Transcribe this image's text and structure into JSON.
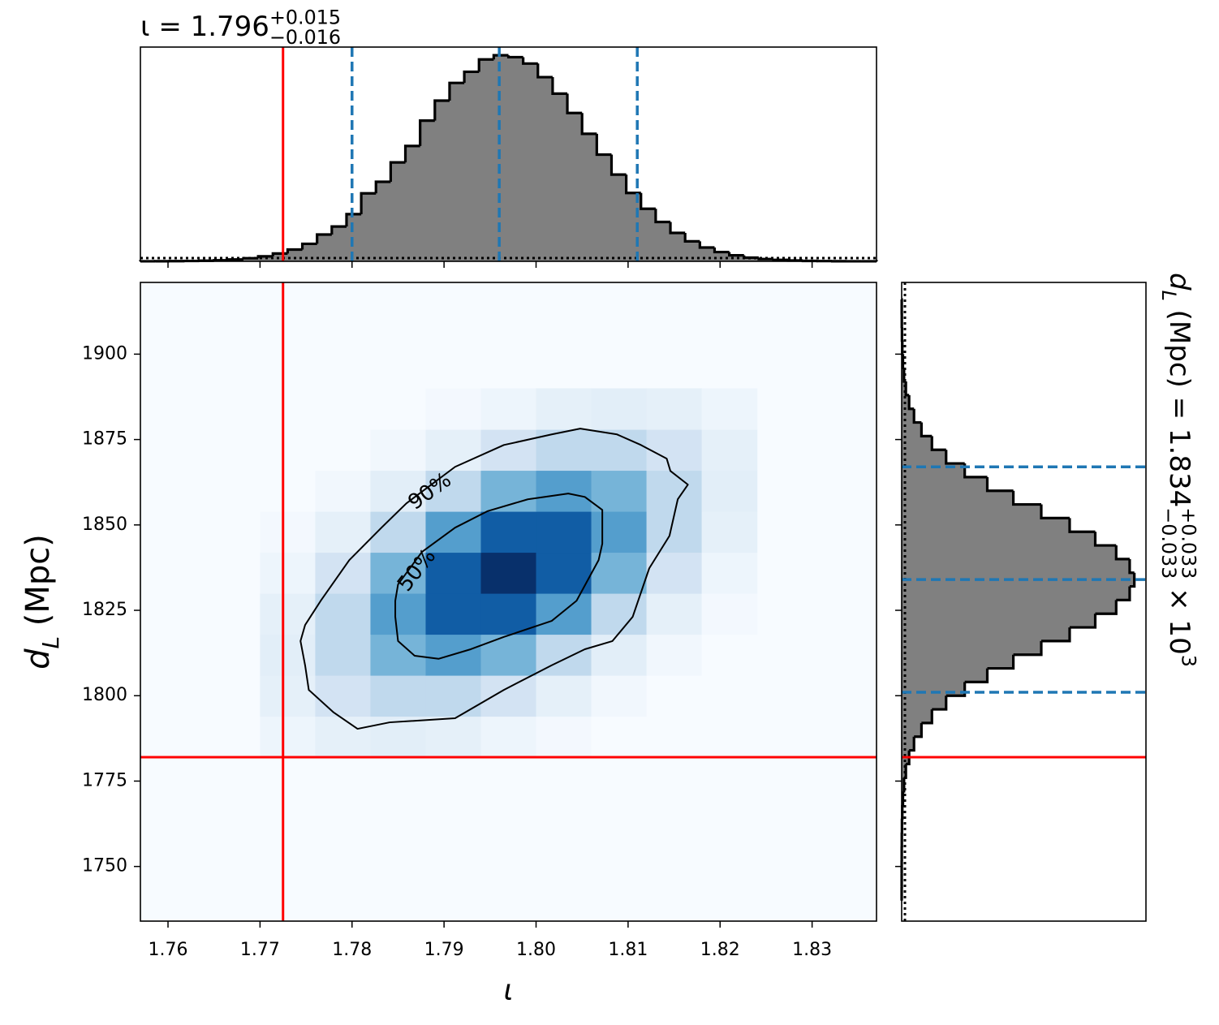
{
  "chart_data": [
    {
      "type": "histogram",
      "orientation": "vertical",
      "title": {
        "text": "ι = 1.796",
        "sup": "+0.015",
        "sub": "−0.016"
      },
      "bins": [
        1.757,
        1.7586,
        1.7602,
        1.7618,
        1.7634,
        1.765,
        1.7666,
        1.7682,
        1.7698,
        1.7714,
        1.773,
        1.7746,
        1.7762,
        1.7778,
        1.7794,
        1.781,
        1.7826,
        1.7842,
        1.7858,
        1.7874,
        1.789,
        1.7906,
        1.7922,
        1.7938,
        1.7954,
        1.797,
        1.7986,
        1.8002,
        1.8018,
        1.8034,
        1.805,
        1.8066,
        1.8082,
        1.8098,
        1.8114,
        1.813,
        1.8146,
        1.8162,
        1.8178,
        1.8194,
        1.821,
        1.8226,
        1.8242,
        1.8258,
        1.8274,
        1.829,
        1.8306,
        1.8322,
        1.8338,
        1.8354,
        1.837
      ],
      "values": [
        0.0002,
        0.0005,
        0.0009,
        0.0017,
        0.003,
        0.005,
        0.009,
        0.015,
        0.024,
        0.038,
        0.057,
        0.085,
        0.13,
        0.169,
        0.229,
        0.33,
        0.386,
        0.48,
        0.56,
        0.683,
        0.78,
        0.866,
        0.92,
        0.98,
        1.0,
        0.991,
        0.96,
        0.894,
        0.814,
        0.72,
        0.619,
        0.518,
        0.421,
        0.332,
        0.255,
        0.191,
        0.138,
        0.097,
        0.067,
        0.045,
        0.029,
        0.018,
        0.011,
        0.007,
        0.004,
        0.002,
        0.0012,
        0.0006,
        0.0003,
        0.0002
      ],
      "color": "#808080",
      "edgecolor": "#000000",
      "xlim": [
        1.757,
        1.837
      ],
      "ylim": [
        0,
        1.04
      ],
      "xticks": [
        1.76,
        1.77,
        1.78,
        1.79,
        1.8,
        1.81,
        1.82,
        1.83
      ],
      "quantiles": [
        1.78,
        1.796,
        1.811
      ],
      "quantile_color": "#1f77b4",
      "truth": 1.7725,
      "truth_color": "#ff0000"
    },
    {
      "type": "density2d",
      "xlabel": "ι",
      "ylabel": {
        "symbol": "d",
        "subscript": "L",
        "unit": " (Mpc)"
      },
      "xlim": [
        1.757,
        1.837
      ],
      "ylim": [
        1734,
        1921
      ],
      "xticks": [
        1.76,
        1.77,
        1.78,
        1.79,
        {
          "value": 1.8,
          "label": "1.80"
        },
        1.81,
        1.82,
        1.83
      ],
      "yticks": [
        1750,
        1775,
        1800,
        1825,
        1850,
        1875,
        1900
      ],
      "colormap": [
        "#f7fbff",
        "#deebf7",
        "#c6dbef",
        "#9ecae1",
        "#6baed6",
        "#4292c6",
        "#2171b5",
        "#08519c",
        "#08306b"
      ],
      "density": {
        "x_edges": [
          1.77,
          1.776,
          1.782,
          1.788,
          1.794,
          1.8,
          1.806,
          1.812,
          1.818,
          1.824
        ],
        "y_edges": [
          1782,
          1794,
          1806,
          1818,
          1830,
          1842,
          1854,
          1866,
          1878,
          1890
        ],
        "values": [
          [
            0.0025,
            0.008,
            0.011,
            0.008,
            0.0025,
            0.0004,
            0,
            0,
            0
          ],
          [
            0.008,
            0.034,
            0.072,
            0.072,
            0.034,
            0.008,
            0.0008,
            0,
            0
          ],
          [
            0.011,
            0.072,
            0.223,
            0.325,
            0.223,
            0.072,
            0.011,
            0.0008,
            0
          ],
          [
            0.008,
            0.072,
            0.325,
            0.687,
            0.687,
            0.325,
            0.072,
            0.008,
            0.0004
          ],
          [
            0.0025,
            0.034,
            0.223,
            0.687,
            1,
            0.687,
            0.223,
            0.034,
            0.0025
          ],
          [
            0.0004,
            0.008,
            0.072,
            0.325,
            0.687,
            0.687,
            0.325,
            0.072,
            0.008
          ],
          [
            0,
            0.0008,
            0.011,
            0.072,
            0.223,
            0.325,
            0.223,
            0.072,
            0.011
          ],
          [
            0,
            0,
            0.0008,
            0.008,
            0.034,
            0.072,
            0.072,
            0.034,
            0.008
          ],
          [
            0,
            0,
            0,
            0.0004,
            0.0025,
            0.008,
            0.011,
            0.008,
            0.0025
          ]
        ]
      },
      "contours": [
        {
          "label": "90%",
          "x": [
            1.7744,
            1.7749,
            1.7766,
            1.7797,
            1.7832,
            1.7859,
            1.7912,
            1.7965,
            1.8017,
            1.8048,
            1.8088,
            1.8114,
            1.8142,
            1.8146,
            1.8165,
            1.8154,
            1.8145,
            1.8123,
            1.8105,
            1.8083,
            1.8053,
            1.8017,
            1.7965,
            1.7912,
            1.7841,
            1.7806,
            1.778,
            1.7753,
            1.7749
          ],
          "y": [
            1816.0,
            1820.7,
            1827.8,
            1839.7,
            1849.2,
            1856.3,
            1867.0,
            1873.4,
            1876.5,
            1878.2,
            1876.5,
            1873.4,
            1869.4,
            1865.8,
            1861.8,
            1857.5,
            1846.8,
            1837.3,
            1823.1,
            1816.0,
            1813.6,
            1808.9,
            1801.7,
            1793.4,
            1792.2,
            1790.3,
            1795.1,
            1801.7,
            1808.9
          ]
        },
        {
          "label": "50%",
          "x": [
            1.7847,
            1.785,
            1.7876,
            1.7912,
            1.7947,
            1.7991,
            1.8035,
            1.8053,
            1.8072,
            1.8072,
            1.8068,
            1.8044,
            1.8017,
            1.7965,
            1.7929,
            1.7894,
            1.7868,
            1.785,
            1.7847
          ],
          "y": [
            1827.8,
            1832.6,
            1842.1,
            1849.2,
            1854.0,
            1857.5,
            1859.2,
            1858.2,
            1854.4,
            1844.5,
            1839.7,
            1827.8,
            1821.9,
            1817.2,
            1813.6,
            1810.8,
            1811.7,
            1816.0,
            1823.1
          ]
        }
      ],
      "truth": {
        "x": 1.7725,
        "y": 1782
      },
      "truth_color": "#ff0000"
    },
    {
      "type": "histogram",
      "orientation": "horizontal",
      "title": {
        "symbol": "d",
        "subscript": "L",
        "text": " (Mpc) = 1.834",
        "sup": "+0.033",
        "sub": "−0.033",
        "suffix": " × 10",
        "exponent": "3"
      },
      "bins": [
        1740,
        1744,
        1748,
        1752,
        1756,
        1760,
        1764,
        1768,
        1772,
        1776,
        1780,
        1784,
        1788,
        1792,
        1796,
        1800,
        1804,
        1808,
        1812,
        1816,
        1820,
        1824,
        1828,
        1832,
        1836,
        1840,
        1844,
        1848,
        1852,
        1856,
        1860,
        1864,
        1868,
        1872,
        1876,
        1880,
        1884,
        1888,
        1892,
        1896,
        1900,
        1904,
        1908,
        1912,
        1916
      ],
      "values": [
        0,
        0.0001,
        0.0001,
        0.0003,
        0.0006,
        0.0013,
        0.0027,
        0.0054,
        0.01,
        0.018,
        0.032,
        0.053,
        0.085,
        0.13,
        0.191,
        0.271,
        0.368,
        0.48,
        0.6,
        0.722,
        0.832,
        0.922,
        0.98,
        1,
        0.98,
        0.922,
        0.832,
        0.722,
        0.6,
        0.48,
        0.368,
        0.271,
        0.191,
        0.13,
        0.085,
        0.053,
        0.032,
        0.018,
        0.01,
        0.0054,
        0.0027,
        0.0013,
        0.0006,
        0.0003
      ],
      "color": "#808080",
      "edgecolor": "#000000",
      "xlim": [
        0,
        1.05
      ],
      "ylim": [
        1734,
        1921
      ],
      "yticks": [
        1750,
        1775,
        1800,
        1825,
        1850,
        1875,
        1900
      ],
      "quantiles": [
        1801,
        1834,
        1867
      ],
      "quantile_color": "#1f77b4",
      "truth": 1782,
      "truth_color": "#ff0000"
    }
  ]
}
